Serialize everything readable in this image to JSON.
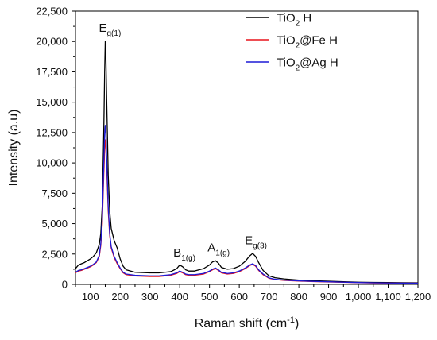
{
  "chart_data": {
    "type": "line",
    "xlabel": {
      "main": "Raman shift (cm",
      "sup": "-1",
      "tail": ")"
    },
    "ylabel": "Intensity (a.u)",
    "xlim": [
      50,
      1200
    ],
    "ylim": [
      0,
      22500
    ],
    "x_ticks": [
      100,
      200,
      300,
      400,
      500,
      600,
      700,
      800,
      900,
      1000,
      1100,
      1200
    ],
    "x_tick_labels": [
      "100",
      "200",
      "300",
      "400",
      "500",
      "600",
      "700",
      "800",
      "900",
      "1,000",
      "1,100",
      "1,200"
    ],
    "y_ticks": [
      0,
      2500,
      5000,
      7500,
      10000,
      12500,
      15000,
      17500,
      20000,
      22500
    ],
    "y_tick_labels": [
      "0",
      "2,500",
      "5,000",
      "7,500",
      "10,000",
      "12,500",
      "15,000",
      "17,500",
      "20,000",
      "22,500"
    ],
    "legend_position": "top-right",
    "grid": false,
    "series": [
      {
        "name": {
          "main": "TiO",
          "sub": "2",
          "tail": " H"
        },
        "color": "#000000",
        "x": [
          50,
          60,
          70,
          80,
          90,
          100,
          110,
          120,
          130,
          135,
          140,
          145,
          148,
          150,
          152,
          155,
          160,
          165,
          170,
          180,
          190,
          200,
          210,
          220,
          250,
          300,
          330,
          350,
          370,
          390,
          400,
          410,
          420,
          430,
          450,
          480,
          500,
          510,
          520,
          530,
          540,
          560,
          580,
          600,
          620,
          635,
          645,
          655,
          665,
          680,
          700,
          720,
          750,
          800,
          850,
          900,
          950,
          1000,
          1050,
          1100,
          1150,
          1200
        ],
        "y": [
          1300,
          1600,
          1700,
          1800,
          1950,
          2100,
          2300,
          2600,
          3300,
          4200,
          6500,
          12500,
          17500,
          20000,
          19000,
          15000,
          9000,
          6000,
          4600,
          3600,
          3000,
          2100,
          1500,
          1200,
          1000,
          950,
          950,
          1000,
          1050,
          1300,
          1600,
          1450,
          1200,
          1100,
          1100,
          1300,
          1600,
          1850,
          1950,
          1750,
          1400,
          1250,
          1300,
          1500,
          1900,
          2350,
          2550,
          2300,
          1800,
          1150,
          700,
          550,
          450,
          350,
          300,
          260,
          220,
          180,
          160,
          150,
          140,
          130
        ]
      },
      {
        "name": {
          "main": "TiO",
          "sub": "2",
          "tail": "@Fe H"
        },
        "color": "#e8131c",
        "x": [
          50,
          60,
          70,
          80,
          90,
          100,
          110,
          120,
          130,
          135,
          140,
          145,
          148,
          150,
          152,
          155,
          160,
          165,
          170,
          180,
          190,
          200,
          210,
          220,
          250,
          300,
          330,
          350,
          370,
          390,
          400,
          410,
          420,
          430,
          450,
          480,
          500,
          510,
          520,
          530,
          540,
          560,
          580,
          600,
          620,
          635,
          645,
          655,
          665,
          680,
          700,
          720,
          750,
          800,
          850,
          900,
          950,
          1000,
          1050,
          1100,
          1150,
          1200
        ],
        "y": [
          950,
          1100,
          1150,
          1250,
          1350,
          1450,
          1600,
          1800,
          2300,
          3200,
          5000,
          9000,
          11000,
          11900,
          11500,
          9500,
          6000,
          4000,
          3000,
          2200,
          1700,
          1300,
          950,
          800,
          700,
          650,
          650,
          700,
          750,
          900,
          1050,
          950,
          800,
          750,
          750,
          850,
          1050,
          1200,
          1300,
          1150,
          950,
          850,
          900,
          1050,
          1300,
          1550,
          1650,
          1500,
          1150,
          800,
          500,
          400,
          330,
          270,
          230,
          200,
          170,
          140,
          120,
          110,
          100,
          95
        ]
      },
      {
        "name": {
          "main": "TiO",
          "sub": "2",
          "tail": "@Ag H"
        },
        "color": "#1d1ad6",
        "x": [
          50,
          60,
          70,
          80,
          90,
          100,
          110,
          120,
          130,
          135,
          140,
          145,
          148,
          150,
          152,
          155,
          160,
          165,
          170,
          180,
          190,
          200,
          210,
          220,
          250,
          300,
          330,
          350,
          370,
          390,
          400,
          410,
          420,
          430,
          450,
          480,
          500,
          510,
          520,
          530,
          540,
          560,
          580,
          600,
          620,
          635,
          645,
          655,
          665,
          680,
          700,
          720,
          750,
          800,
          850,
          900,
          950,
          1000,
          1050,
          1100,
          1150,
          1200
        ],
        "y": [
          1000,
          1150,
          1200,
          1300,
          1400,
          1500,
          1650,
          1850,
          2400,
          3400,
          5400,
          9800,
          12400,
          13100,
          12500,
          10200,
          6400,
          4200,
          3100,
          2300,
          1800,
          1350,
          1000,
          850,
          750,
          700,
          700,
          750,
          800,
          950,
          1100,
          1000,
          850,
          800,
          800,
          900,
          1100,
          1250,
          1350,
          1200,
          1000,
          900,
          950,
          1100,
          1350,
          1600,
          1700,
          1550,
          1200,
          850,
          530,
          420,
          350,
          290,
          250,
          215,
          180,
          150,
          130,
          115,
          105,
          100
        ]
      }
    ],
    "annotations": [
      {
        "main": "E",
        "sub": "g(1)",
        "x": 150,
        "y": 20800
      },
      {
        "main": "B",
        "sub": "1(g)",
        "x": 400,
        "y": 2300
      },
      {
        "main": "A",
        "sub": "1(g)",
        "x": 515,
        "y": 2700
      },
      {
        "main": "E",
        "sub": "g(3)",
        "x": 640,
        "y": 3300
      }
    ]
  }
}
